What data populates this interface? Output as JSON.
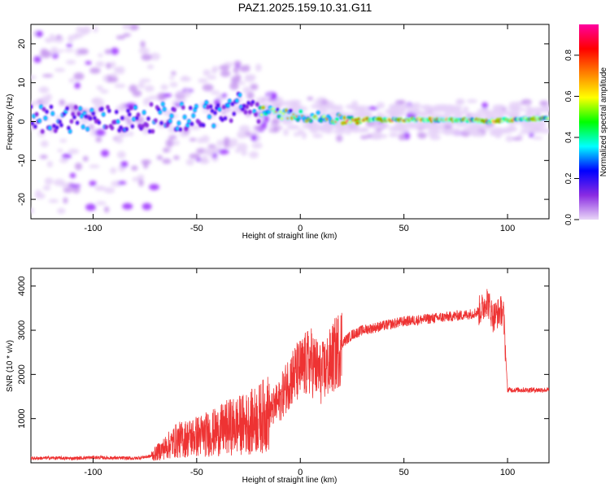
{
  "figure": {
    "title": "PAZ1.2025.159.10.31.G11"
  },
  "chart_data": [
    {
      "type": "heatmap",
      "xlabel": "Height of straight line (km)",
      "ylabel": "Frequency (Hz)",
      "xlim": [
        -130,
        120
      ],
      "ylim": [
        -25,
        25
      ],
      "xticks": [
        -100,
        -50,
        0,
        50,
        100
      ],
      "yticks": [
        -20,
        -10,
        0,
        10,
        20
      ],
      "colorbar": {
        "label": "Normalized spectral amplitude",
        "range": [
          0,
          0.95
        ],
        "ticks": [
          "0.0",
          "0.2",
          "0.4",
          "0.6",
          "0.8"
        ],
        "colormap": [
          "#e9d6f7",
          "#8a2be2",
          "#0000ff",
          "#00ffff",
          "#00ff00",
          "#ffff00",
          "#ff8000",
          "#ff0000",
          "#ff00a0"
        ]
      },
      "ridge": {
        "description_points_x": [
          -130,
          -110,
          -90,
          -70,
          -50,
          -40,
          -30,
          -20,
          -10,
          0,
          10,
          20,
          40,
          60,
          80,
          90,
          100,
          120
        ],
        "frequency_center": [
          0.5,
          1,
          0.5,
          1,
          1.5,
          2,
          4,
          3,
          2,
          1.5,
          1,
          0.5,
          0.5,
          0.5,
          0.5,
          0,
          0.5,
          0.8
        ]
      }
    },
    {
      "type": "line",
      "xlabel": "Height of straight line (km)",
      "ylabel": "SNR (10 * v/v)",
      "xlim": [
        -130,
        120
      ],
      "ylim": [
        0,
        4400
      ],
      "xticks": [
        -100,
        -50,
        0,
        50,
        100
      ],
      "yticks": [
        1000,
        2000,
        3000,
        4000
      ],
      "line_color": "#ee3333",
      "series": [
        {
          "x": [
            -130,
            -120,
            -110,
            -100,
            -90,
            -80,
            -72,
            -65,
            -60,
            -55,
            -50,
            -45,
            -40,
            -35,
            -30,
            -25,
            -20,
            -15,
            -10,
            -5,
            0,
            5,
            10,
            15,
            20,
            25,
            30,
            40,
            50,
            60,
            70,
            80,
            85,
            88,
            90,
            93,
            97,
            98,
            100,
            110,
            120
          ],
          "values": [
            100,
            110,
            100,
            120,
            110,
            100,
            150,
            350,
            500,
            550,
            600,
            650,
            700,
            800,
            850,
            900,
            1000,
            1150,
            1400,
            1900,
            2100,
            2300,
            2000,
            2300,
            2700,
            2900,
            3000,
            3100,
            3200,
            3250,
            3300,
            3350,
            3400,
            3500,
            3700,
            3300,
            3450,
            3400,
            1650,
            1650,
            1650
          ]
        }
      ]
    }
  ]
}
